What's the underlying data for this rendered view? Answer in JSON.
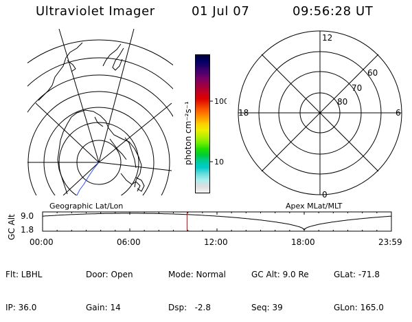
{
  "header": {
    "instrument": "Ultraviolet Imager",
    "date": "01 Jul 07",
    "time": "09:56:28 UT"
  },
  "colorbar": {
    "unit_label": "photon cm⁻²s⁻¹",
    "ticks": [
      "100",
      "10"
    ],
    "colors": [
      "#000033",
      "#000066",
      "#2a006a",
      "#550070",
      "#800060",
      "#a00040",
      "#c40020",
      "#dd0000",
      "#ee3300",
      "#ff6600",
      "#ff9900",
      "#ffcc00",
      "#eeee00",
      "#bbee00",
      "#77ee00",
      "#22dd00",
      "#00cc33",
      "#00cc99",
      "#00cccc",
      "#66dddd",
      "#aaeeee",
      "#dddddd",
      "#f4f4f4"
    ]
  },
  "polar_plot": {
    "mlt_labels": {
      "top": "12",
      "left": "18",
      "right": "6",
      "bottom": "0"
    },
    "lat_labels": [
      "60",
      "70",
      "80"
    ]
  },
  "altitude_plot": {
    "ylabel": "GC Alt",
    "y_ticks": [
      "9.0",
      "1.8"
    ],
    "x_ticks": [
      "00:00",
      "06:00",
      "12:00",
      "18:00",
      "23:59"
    ],
    "left_title": "Geographic Lat/Lon",
    "right_title": "Apex MLat/MLT",
    "current_time_fraction": 0.4142,
    "marker_color": "#cc0000"
  },
  "footer": {
    "col1": [
      "Flt: LBHL",
      "IP: 36.0"
    ],
    "col2": [
      "Door: Open",
      "Gain: 14"
    ],
    "col3": [
      "Mode: Normal",
      "Dsp:   -2.8"
    ],
    "col4": [
      "GC Alt: 9.0 Re",
      "Seq: 39"
    ],
    "col5": [
      "GLat: -71.8",
      "GLon: 165.0"
    ]
  }
}
